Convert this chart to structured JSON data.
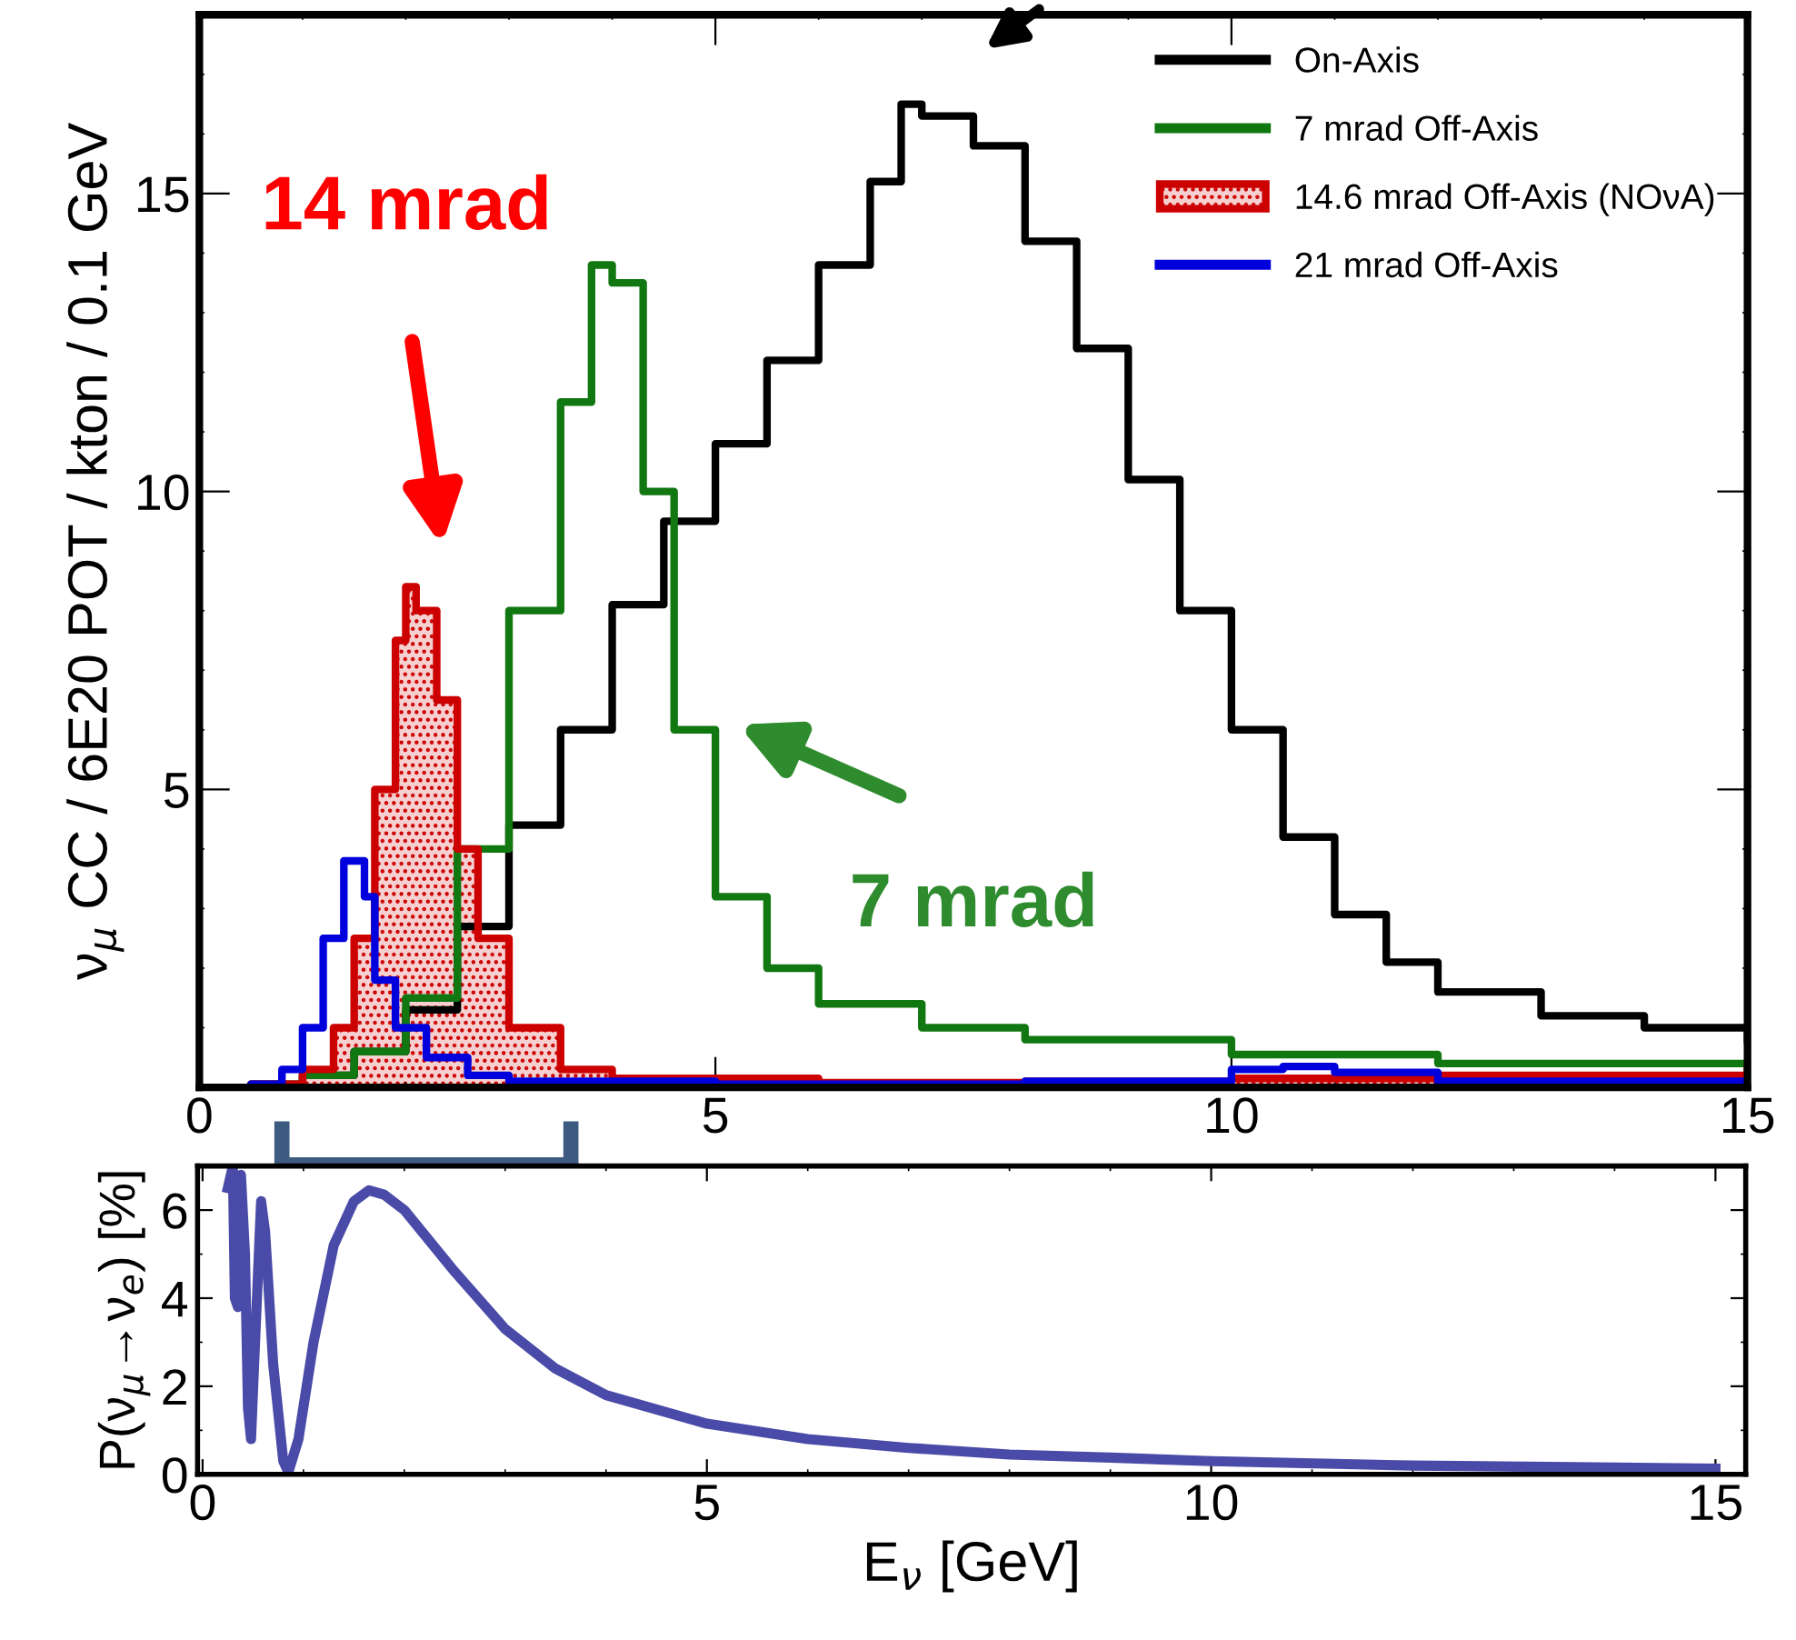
{
  "chart_data": [
    {
      "type": "step",
      "ylabel": "ν$_{μ}$ CC / 6E20 POT / kton / 0.1 GeV",
      "xlim": [
        0,
        15
      ],
      "ylim": [
        0,
        18
      ],
      "xticks": [
        0,
        5,
        10,
        15
      ],
      "yticks": [
        5,
        10,
        15
      ],
      "legend": "top right",
      "grid": false,
      "annotations": [
        "14 mrad",
        "7 mrad"
      ],
      "series": [
        {
          "name": "On-Axis",
          "color": "#000000",
          "x": [
            0,
            0.5,
            1,
            1.5,
            2,
            2.5,
            3,
            3.5,
            4,
            4.5,
            5,
            5.5,
            6,
            6.5,
            6.8,
            7,
            7.5,
            8,
            8.5,
            9,
            9.5,
            10,
            10.5,
            11,
            11.5,
            12,
            13,
            14,
            15
          ],
          "values": [
            0,
            0.05,
            0.2,
            0.6,
            1.3,
            2.7,
            4.4,
            6.0,
            8.1,
            9.5,
            10.8,
            12.2,
            13.8,
            15.2,
            16.5,
            16.3,
            15.8,
            14.2,
            12.4,
            10.2,
            8.0,
            6.0,
            4.2,
            2.9,
            2.1,
            1.6,
            1.2,
            1.0,
            0.8
          ]
        },
        {
          "name": "7 mrad Off-Axis",
          "color": "#117711",
          "x": [
            0,
            1,
            1.5,
            2,
            2.5,
            3,
            3.5,
            3.8,
            4.0,
            4.3,
            4.6,
            5,
            5.5,
            6,
            7,
            8,
            10,
            12,
            15
          ],
          "values": [
            0,
            0.2,
            0.6,
            1.5,
            4.0,
            8.0,
            11.5,
            13.8,
            13.5,
            10.0,
            6.0,
            3.2,
            2.0,
            1.4,
            1.0,
            0.8,
            0.55,
            0.4,
            0.3
          ]
        },
        {
          "name": "14.6 mrad Off-Axis (NOνA)",
          "type": "area",
          "color": "#cc0000",
          "x": [
            0,
            0.5,
            1,
            1.3,
            1.5,
            1.7,
            1.9,
            2.0,
            2.1,
            2.3,
            2.5,
            2.7,
            3,
            3.5,
            4,
            6,
            8,
            10,
            12,
            15
          ],
          "values": [
            0,
            0.05,
            0.3,
            1.0,
            2.5,
            5.0,
            7.5,
            8.4,
            8.0,
            6.5,
            4.0,
            2.5,
            1.0,
            0.3,
            0.15,
            0.08,
            0.1,
            0.15,
            0.2,
            0.3
          ]
        },
        {
          "name": "21 mrad Off-Axis",
          "color": "#0000dd",
          "x": [
            0,
            0.5,
            0.8,
            1.0,
            1.2,
            1.4,
            1.6,
            1.7,
            1.9,
            2.2,
            2.6,
            3,
            5,
            8,
            10,
            10.5,
            11,
            12,
            15
          ],
          "values": [
            0,
            0.05,
            0.3,
            1.0,
            2.5,
            3.8,
            3.2,
            1.8,
            1.0,
            0.5,
            0.2,
            0.1,
            0.05,
            0.1,
            0.3,
            0.35,
            0.25,
            0.1,
            0.05
          ]
        }
      ]
    },
    {
      "type": "line",
      "xlabel": "E$_{ν}$ [GeV]",
      "ylabel": "P(ν$_{μ}$→ν$_{e}$) [%]",
      "xlim": [
        -0.05,
        15.3
      ],
      "ylim": [
        0,
        7
      ],
      "xticks": [
        0,
        5,
        10,
        15
      ],
      "yticks": [
        0,
        2,
        4,
        6
      ],
      "grid": false,
      "series": [
        {
          "color": "#4a4aa8",
          "x": [
            0.25,
            0.3,
            0.32,
            0.35,
            0.38,
            0.42,
            0.45,
            0.48,
            0.52,
            0.58,
            0.62,
            0.7,
            0.8,
            0.85,
            0.95,
            1.1,
            1.3,
            1.5,
            1.65,
            1.8,
            2,
            2.5,
            3,
            3.5,
            4,
            5,
            6,
            7,
            8,
            9,
            10,
            12,
            15
          ],
          "values": [
            6.5,
            7.0,
            4.0,
            3.8,
            6.8,
            5.0,
            1.5,
            0.8,
            3.0,
            6.2,
            5.5,
            2.5,
            0.3,
            0.05,
            0.8,
            3.0,
            5.2,
            6.2,
            6.45,
            6.35,
            6.0,
            4.6,
            3.3,
            2.4,
            1.8,
            1.15,
            0.8,
            0.6,
            0.45,
            0.38,
            0.3,
            0.2,
            0.13
          ]
        }
      ]
    }
  ]
}
